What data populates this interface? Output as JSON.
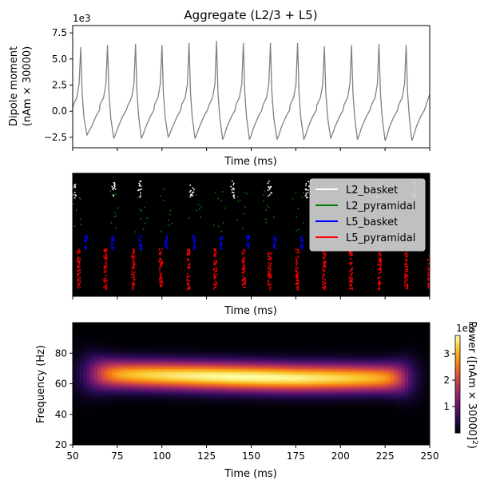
{
  "chart_data": [
    {
      "type": "line",
      "title": "Aggregate (L2/3 + L5)",
      "xlabel": "Time (ms)",
      "ylabel_line1": "Dipole moment",
      "ylabel_line2": "(nAm × 30000)",
      "offset_label": "1e3",
      "xlim": [
        50,
        250
      ],
      "ylim": [
        -3.5,
        8.2
      ],
      "y_ticks": [
        -2.5,
        0.0,
        2.5,
        5.0,
        7.5
      ],
      "y_tick_labels": [
        "−2.5",
        "0.0",
        "2.5",
        "5.0",
        "7.5"
      ],
      "x_ticks": [
        50,
        75,
        100,
        125,
        150,
        175,
        200,
        225,
        250
      ],
      "line_color": "#808080",
      "series": [
        {
          "peaks_x": [
            54.5,
            69.5,
            85.2,
            100.0,
            115.2,
            130.6,
            145.6,
            160.8,
            176.0,
            191.0,
            206.2,
            221.6,
            236.8
          ],
          "peaks_y": [
            6.1,
            6.3,
            6.4,
            6.3,
            6.5,
            6.7,
            6.5,
            6.5,
            6.5,
            6.2,
            6.3,
            6.4,
            6.3
          ],
          "troughs_x": [
            58.0,
            73.0,
            88.5,
            103.5,
            118.5,
            134.0,
            149.0,
            164.5,
            179.5,
            194.5,
            209.5,
            225.0,
            240.0
          ],
          "troughs_y": [
            -2.3,
            -2.6,
            -2.6,
            -2.5,
            -2.6,
            -2.7,
            -2.7,
            -2.7,
            -2.7,
            -2.6,
            -2.7,
            -2.8,
            -2.8
          ],
          "start_value": 0.2,
          "end_value": 1.6
        }
      ]
    },
    {
      "type": "scatter",
      "xlabel": "Time (ms)",
      "xlim": [
        50,
        250
      ],
      "background": "#000000",
      "legend_position": "top-right",
      "series": [
        {
          "name": "L2_basket",
          "color": "#ffffff",
          "burst_times": [
            50.5,
            72.5,
            87.5,
            116.5,
            139.5,
            160.0,
            181.0,
            221.0,
            241.0
          ]
        },
        {
          "name": "L2_pyramidal",
          "color": "#008000",
          "burst_times": [
            52.0,
            73.0,
            88.0,
            102.0,
            118.0,
            132.0,
            145.0,
            160.0,
            176.0,
            190.0,
            205.0,
            221.0,
            237.0
          ]
        },
        {
          "name": "L5_basket",
          "color": "#0000ff",
          "burst_times": [
            57.0,
            72.0,
            87.5,
            102.0,
            117.5,
            133.0,
            148.0,
            163.0,
            178.0,
            193.0,
            208.5,
            224.0,
            239.0
          ]
        },
        {
          "name": "L5_pyramidal",
          "color": "#ff0000",
          "burst_times": [
            53.0,
            68.0,
            83.5,
            99.0,
            114.5,
            129.5,
            145.5,
            160.0,
            175.5,
            190.5,
            205.5,
            221.5,
            236.5,
            249.5
          ]
        }
      ]
    },
    {
      "type": "heatmap",
      "xlabel": "Time (ms)",
      "ylabel": "Frequency (Hz)",
      "xlim": [
        50,
        250
      ],
      "ylim": [
        20,
        100
      ],
      "x_ticks": [
        50,
        75,
        100,
        125,
        150,
        175,
        200,
        225,
        250
      ],
      "x_tick_labels": [
        "50",
        "75",
        "100",
        "125",
        "150",
        "175",
        "200",
        "225",
        "250"
      ],
      "y_ticks": [
        20,
        40,
        60,
        80
      ],
      "y_tick_labels": [
        "20",
        "40",
        "60",
        "80"
      ],
      "colormap": "inferno",
      "band_center_hz": 64,
      "band_center_start_hz": 67,
      "band_width_hz": 9,
      "peak_power": 3.6,
      "colorbar": {
        "label": "Power ([nAm × 30000]",
        "label_superscript": "2",
        "label_close": ")",
        "offset_label": "1e5",
        "range": [
          0,
          3.7
        ],
        "ticks": [
          1,
          2,
          3
        ],
        "tick_labels": [
          "1",
          "2",
          "3"
        ]
      }
    }
  ]
}
